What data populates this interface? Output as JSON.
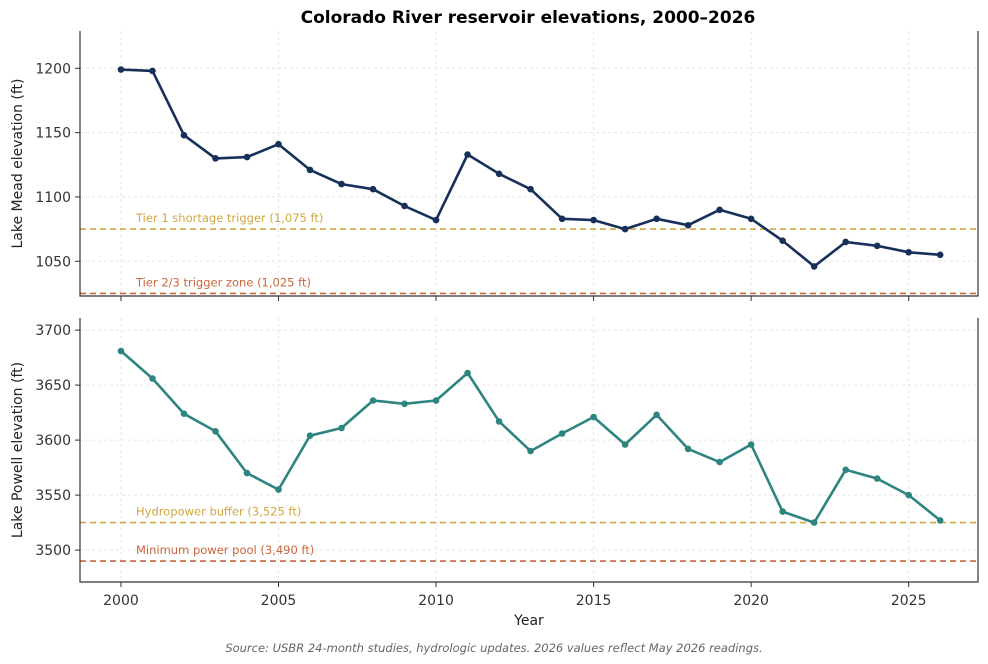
{
  "title": "Colorado River reservoir elevations, 2000–2026",
  "source_note": "Source: USBR 24-month studies, hydrologic updates. 2026 values reflect May 2026 readings.",
  "colors": {
    "mead": "#17305a",
    "powell": "#2e8580",
    "tier1": "#d4a640",
    "tier23": "#c9673c"
  },
  "chart_data": [
    {
      "type": "line",
      "name": "lake-mead",
      "xlabel": "",
      "ylabel": "Lake Mead elevation (ft)",
      "xlim": [
        1998.7,
        2027.2
      ],
      "ylim": [
        1023,
        1229
      ],
      "yticks": [
        1050,
        1100,
        1150,
        1200
      ],
      "grid": true,
      "x": [
        2000,
        2001,
        2002,
        2003,
        2004,
        2005,
        2006,
        2007,
        2008,
        2009,
        2010,
        2011,
        2012,
        2013,
        2014,
        2015,
        2016,
        2017,
        2018,
        2019,
        2020,
        2021,
        2022,
        2023,
        2024,
        2025,
        2026
      ],
      "series": [
        {
          "values": [
            1199,
            1198,
            1148,
            1130,
            1131,
            1141,
            1121,
            1110,
            1106,
            1093,
            1082,
            1133,
            1118,
            1106,
            1083,
            1082,
            1075,
            1083,
            1078,
            1090,
            1083,
            1066,
            1046,
            1065,
            1062,
            1057,
            1055
          ]
        }
      ],
      "reference_lines": [
        {
          "label": "Tier 1 shortage trigger (1,075 ft)",
          "value": 1075,
          "color": "#d4a640"
        },
        {
          "label": "Tier 2/3 trigger zone (1,025 ft)",
          "value": 1025,
          "color": "#c9673c"
        }
      ]
    },
    {
      "type": "line",
      "name": "lake-powell",
      "xlabel": "Year",
      "ylabel": "Lake Powell elevation (ft)",
      "xlim": [
        1998.7,
        2027.2
      ],
      "ylim": [
        3471,
        3711
      ],
      "xticks": [
        2000,
        2005,
        2010,
        2015,
        2020,
        2025
      ],
      "yticks": [
        3500,
        3550,
        3600,
        3650,
        3700
      ],
      "grid": true,
      "x": [
        2000,
        2001,
        2002,
        2003,
        2004,
        2005,
        2006,
        2007,
        2008,
        2009,
        2010,
        2011,
        2012,
        2013,
        2014,
        2015,
        2016,
        2017,
        2018,
        2019,
        2020,
        2021,
        2022,
        2023,
        2024,
        2025,
        2026
      ],
      "series": [
        {
          "values": [
            3681,
            3656,
            3624,
            3608,
            3570,
            3555,
            3604,
            3611,
            3636,
            3633,
            3636,
            3661,
            3617,
            3590,
            3606,
            3621,
            3596,
            3623,
            3592,
            3580,
            3596,
            3535,
            3525,
            3573,
            3565,
            3550,
            3527
          ]
        }
      ],
      "reference_lines": [
        {
          "label": "Hydropower buffer (3,525 ft)",
          "value": 3525,
          "color": "#d4a640"
        },
        {
          "label": "Minimum power pool (3,490 ft)",
          "value": 3490,
          "color": "#c9673c"
        }
      ]
    }
  ]
}
